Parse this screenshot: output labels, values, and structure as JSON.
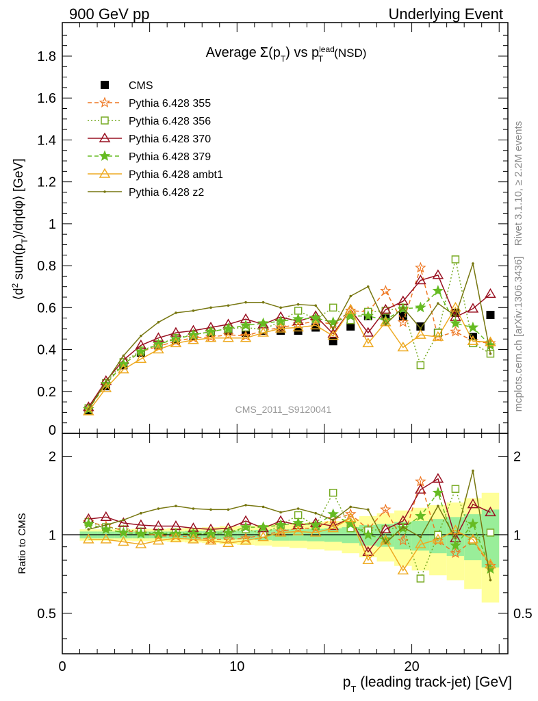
{
  "header": {
    "left": "900 GeV pp",
    "right": "Underlying Event"
  },
  "side_labels": {
    "rivet": "Rivet 3.1.10, ≥ 2.2M events",
    "mcplots": "mcplots.cern.ch [arXiv:1306.3436]"
  },
  "watermark": "CMS_2011_S9120041",
  "main_title": "Average Σ(p_T) vs p_T^lead (NSD)",
  "ylabel_main": "⟨d² sum(p_T)/dηdφ⟩ [GeV]",
  "ylabel_ratio": "Ratio to CMS",
  "xlabel": "p_T (leading track-jet) [GeV]",
  "chart_data": [
    {
      "type": "scatter",
      "panel": "main",
      "title": "Average Σ(p_T) vs p_T^lead (NSD)",
      "xlabel": "p_T (leading track-jet) [GeV]",
      "ylabel": "⟨d² sum(p_T)/dηdφ⟩ [GeV]",
      "xlim": [
        0,
        25.5
      ],
      "ylim": [
        0,
        1.96
      ],
      "xticks": [
        0,
        10,
        20
      ],
      "yticks": [
        0.2,
        0.4,
        0.6,
        0.8,
        1,
        1.2,
        1.4,
        1.6,
        1.8
      ],
      "ytick_zero_label": "0",
      "legend_position": "top-left",
      "x": [
        1.5,
        2.5,
        3.5,
        4.5,
        5.5,
        6.5,
        7.5,
        8.5,
        9.5,
        10.5,
        11.5,
        12.5,
        13.5,
        14.5,
        15.5,
        16.5,
        17.5,
        18.5,
        19.5,
        20.5,
        21.5,
        22.5,
        23.5,
        24.5
      ],
      "series": [
        {
          "name": "CMS",
          "color": "#000000",
          "marker": "square-filled",
          "line": "none",
          "values": [
            0.11,
            0.225,
            0.325,
            0.385,
            0.42,
            0.445,
            0.465,
            0.48,
            0.49,
            0.48,
            0.49,
            0.49,
            0.49,
            0.505,
            0.44,
            0.51,
            0.56,
            0.56,
            0.56,
            0.51,
            0.48,
            0.575,
            0.46,
            0.565
          ]
        },
        {
          "name": "Pythia 6.428 355",
          "color": "#ee7722",
          "marker": "star-open",
          "line": "dashed",
          "values": [
            0.115,
            0.235,
            0.33,
            0.39,
            0.415,
            0.44,
            0.455,
            0.46,
            0.47,
            0.465,
            0.49,
            0.505,
            0.52,
            0.535,
            0.52,
            0.585,
            0.58,
            0.68,
            0.53,
            0.79,
            0.46,
            0.485,
            0.44,
            0.43
          ]
        },
        {
          "name": "Pythia 6.428 356",
          "color": "#77aa22",
          "marker": "square-open",
          "line": "dotted",
          "values": [
            0.12,
            0.24,
            0.34,
            0.395,
            0.425,
            0.455,
            0.47,
            0.485,
            0.5,
            0.505,
            0.495,
            0.535,
            0.585,
            0.545,
            0.6,
            0.54,
            0.58,
            0.585,
            0.6,
            0.325,
            0.48,
            0.83,
            0.43,
            0.38
          ]
        },
        {
          "name": "Pythia 6.428 370",
          "color": "#991122",
          "marker": "triangle-open",
          "line": "solid",
          "values": [
            0.125,
            0.25,
            0.35,
            0.42,
            0.455,
            0.48,
            0.49,
            0.505,
            0.52,
            0.545,
            0.52,
            0.555,
            0.535,
            0.56,
            0.475,
            0.59,
            0.48,
            0.59,
            0.63,
            0.73,
            0.755,
            0.555,
            0.595,
            0.665
          ]
        },
        {
          "name": "Pythia 6.428 379",
          "color": "#66bb22",
          "marker": "star-filled",
          "line": "dashed",
          "values": [
            0.115,
            0.235,
            0.33,
            0.39,
            0.425,
            0.45,
            0.47,
            0.485,
            0.5,
            0.515,
            0.525,
            0.535,
            0.545,
            0.55,
            0.53,
            0.56,
            0.56,
            0.54,
            0.595,
            0.6,
            0.68,
            0.525,
            0.505,
            0.42
          ]
        },
        {
          "name": "Pythia 6.428 ambt1",
          "color": "#eeaa22",
          "marker": "triangle-open",
          "line": "solid",
          "values": [
            0.105,
            0.215,
            0.305,
            0.355,
            0.4,
            0.43,
            0.445,
            0.455,
            0.455,
            0.455,
            0.48,
            0.5,
            0.505,
            0.515,
            0.465,
            0.59,
            0.43,
            0.53,
            0.41,
            0.47,
            0.46,
            0.6,
            0.44,
            0.435
          ]
        },
        {
          "name": "Pythia 6.428 z2",
          "color": "#777711",
          "marker": "dot",
          "line": "solid",
          "values": [
            0.115,
            0.245,
            0.37,
            0.465,
            0.53,
            0.575,
            0.585,
            0.6,
            0.61,
            0.625,
            0.625,
            0.6,
            0.615,
            0.61,
            0.5,
            0.655,
            0.7,
            0.52,
            0.6,
            0.5,
            0.62,
            0.56,
            0.81,
            0.38
          ]
        }
      ]
    },
    {
      "type": "scatter",
      "panel": "ratio",
      "ylabel": "Ratio to CMS",
      "xlabel": "p_T (leading track-jet) [GeV]",
      "xlim": [
        0,
        25.5
      ],
      "ylim": [
        0.35,
        2.45
      ],
      "scale": "log",
      "yticks": [
        0.5,
        1,
        2
      ],
      "xticks": [
        0,
        10,
        20
      ],
      "x": [
        1.5,
        2.5,
        3.5,
        4.5,
        5.5,
        6.5,
        7.5,
        8.5,
        9.5,
        10.5,
        11.5,
        12.5,
        13.5,
        14.5,
        15.5,
        16.5,
        17.5,
        18.5,
        19.5,
        20.5,
        21.5,
        22.5,
        23.5,
        24.5
      ],
      "band_edges": [
        1,
        2,
        3,
        4,
        5,
        6,
        7,
        8,
        9,
        10,
        11,
        12,
        13,
        14,
        15,
        16,
        17,
        18,
        19,
        20,
        21,
        22,
        23,
        24,
        25
      ],
      "band_inner_halfwidth": [
        0.03,
        0.03,
        0.03,
        0.03,
        0.03,
        0.03,
        0.035,
        0.035,
        0.04,
        0.04,
        0.045,
        0.05,
        0.05,
        0.055,
        0.06,
        0.07,
        0.09,
        0.1,
        0.12,
        0.13,
        0.15,
        0.17,
        0.2,
        0.25
      ],
      "band_outer_halfwidth": [
        0.05,
        0.05,
        0.05,
        0.055,
        0.055,
        0.06,
        0.065,
        0.07,
        0.08,
        0.085,
        0.09,
        0.1,
        0.11,
        0.12,
        0.13,
        0.15,
        0.18,
        0.21,
        0.24,
        0.27,
        0.3,
        0.33,
        0.38,
        0.45
      ],
      "series": [
        {
          "name": "Pythia 6.428 355",
          "color": "#ee7722",
          "line": "dashed",
          "values": [
            1.12,
            1.08,
            1.04,
            1.02,
            0.99,
            0.99,
            0.98,
            0.96,
            0.96,
            0.97,
            1.0,
            1.03,
            1.06,
            1.06,
            1.15,
            1.2,
            1.05,
            1.25,
            0.95,
            1.6,
            0.95,
            0.85,
            0.95,
            0.76
          ]
        },
        {
          "name": "Pythia 6.428 356",
          "color": "#77aa22",
          "line": "dotted",
          "values": [
            1.12,
            1.07,
            1.05,
            1.03,
            1.01,
            1.02,
            1.01,
            1.01,
            1.02,
            1.05,
            1.01,
            1.09,
            1.19,
            1.08,
            1.45,
            1.06,
            1.04,
            1.05,
            1.07,
            0.68,
            1.0,
            1.5,
            0.95,
            1.02
          ]
        },
        {
          "name": "Pythia 6.428 370",
          "color": "#991122",
          "line": "solid",
          "values": [
            1.15,
            1.17,
            1.11,
            1.09,
            1.08,
            1.08,
            1.06,
            1.05,
            1.06,
            1.13,
            1.06,
            1.13,
            1.09,
            1.11,
            1.08,
            1.16,
            0.86,
            1.05,
            1.13,
            1.49,
            1.64,
            0.97,
            1.31,
            1.22
          ]
        },
        {
          "name": "Pythia 6.428 379",
          "color": "#66bb22",
          "line": "dashed",
          "values": [
            1.1,
            1.05,
            1.02,
            1.01,
            1.01,
            1.01,
            1.01,
            1.01,
            1.02,
            1.07,
            1.07,
            1.09,
            1.11,
            1.09,
            1.2,
            1.1,
            1.0,
            0.96,
            1.06,
            1.18,
            1.45,
            0.91,
            1.1,
            0.74
          ]
        },
        {
          "name": "Pythia 6.428 ambt1",
          "color": "#eeaa22",
          "line": "solid",
          "values": [
            0.96,
            0.96,
            0.94,
            0.92,
            0.95,
            0.97,
            0.96,
            0.95,
            0.93,
            0.95,
            0.98,
            1.02,
            1.03,
            1.02,
            1.06,
            1.16,
            0.8,
            0.95,
            0.73,
            0.92,
            0.96,
            1.04,
            0.96,
            0.77
          ]
        },
        {
          "name": "Pythia 6.428 z2",
          "color": "#777711",
          "line": "solid",
          "values": [
            1.05,
            1.09,
            1.14,
            1.21,
            1.26,
            1.29,
            1.26,
            1.25,
            1.25,
            1.3,
            1.28,
            1.22,
            1.26,
            1.21,
            1.14,
            1.28,
            1.25,
            0.93,
            1.07,
            0.98,
            1.29,
            0.97,
            1.76,
            0.67
          ]
        }
      ]
    }
  ]
}
